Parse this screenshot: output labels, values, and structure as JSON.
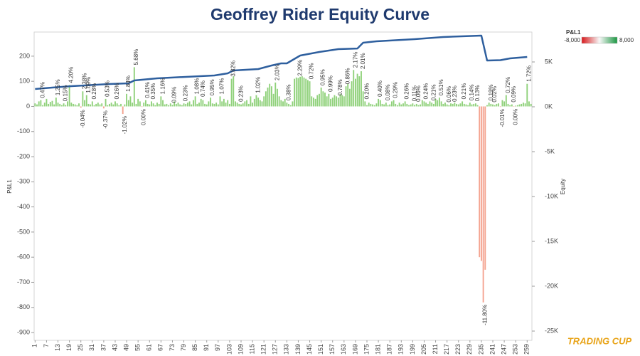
{
  "chart_data": {
    "type": "bar",
    "title": "Geoffrey Rider Equity Curve",
    "y_label": "P&L1",
    "y2_label": "Equity",
    "logo": "TRADING CUP",
    "categories": [
      1,
      null,
      null,
      null,
      null,
      null,
      7,
      null,
      null,
      null,
      null,
      null,
      13,
      null,
      null,
      null,
      null,
      null,
      19,
      null,
      null,
      null,
      null,
      null,
      25,
      null,
      null,
      null,
      null,
      null,
      31,
      null,
      null,
      null,
      null,
      null,
      37,
      null,
      null,
      null,
      null,
      null,
      43,
      null,
      null,
      null,
      null,
      null,
      49,
      null,
      null,
      null,
      null,
      null,
      55,
      null,
      null,
      null,
      null,
      null,
      61,
      null,
      null,
      null,
      null,
      null,
      67,
      null,
      null,
      null,
      null,
      null,
      73,
      null,
      null,
      null,
      null,
      null,
      79,
      null,
      null,
      null,
      null,
      null,
      85,
      null,
      null,
      null,
      null,
      null,
      91,
      null,
      null,
      null,
      null,
      null,
      97,
      null,
      null,
      null,
      null,
      null,
      103,
      null,
      null,
      null,
      null,
      null,
      109,
      null,
      null,
      null,
      null,
      null,
      115,
      null,
      null,
      null,
      null,
      null,
      121,
      null,
      null,
      null,
      null,
      null,
      127,
      null,
      null,
      null,
      null,
      null,
      133,
      null,
      null,
      null,
      null,
      null,
      139,
      null,
      null,
      null,
      null,
      null,
      145,
      null,
      null,
      null,
      null,
      null,
      151,
      null,
      null,
      null,
      null,
      null,
      157,
      null,
      null,
      null,
      null,
      null,
      163,
      null,
      null,
      null,
      null,
      null,
      169,
      null,
      null,
      null,
      null,
      null,
      175,
      null,
      null,
      null,
      null,
      null,
      181,
      null,
      null,
      null,
      null,
      null,
      187,
      null,
      null,
      null,
      null,
      null,
      193,
      null,
      null,
      null,
      null,
      null,
      199,
      null,
      null,
      null,
      null,
      null,
      205,
      null,
      null,
      null,
      null,
      null,
      211,
      null,
      null,
      null,
      null,
      null,
      217,
      null,
      null,
      null,
      null,
      null,
      223,
      null,
      null,
      null,
      null,
      null,
      229,
      null,
      null,
      null,
      null,
      null,
      235,
      null,
      null,
      null,
      null,
      null,
      241,
      null,
      null,
      null,
      null,
      null,
      247,
      null,
      null,
      null,
      null,
      null,
      253,
      null,
      null,
      null,
      null,
      null,
      259,
      null,
      null
    ],
    "series": [
      {
        "name": "P&L1",
        "pos_color": "#8fd17a",
        "neg_color": "#f4a38f",
        "values": [
          12,
          8,
          20,
          25,
          5,
          15,
          30,
          10,
          18,
          22,
          8,
          35,
          15,
          10,
          5,
          12,
          6,
          20,
          85,
          15,
          10,
          8,
          5,
          12,
          -5,
          60,
          25,
          45,
          10,
          8,
          20,
          5,
          10,
          15,
          8,
          12,
          -8,
          30,
          5,
          10,
          15,
          8,
          20,
          12,
          5,
          10,
          -30,
          8,
          50,
          25,
          40,
          15,
          156,
          10,
          30,
          20,
          -2,
          15,
          25,
          10,
          8,
          20,
          12,
          5,
          15,
          10,
          40,
          25,
          8,
          10,
          5,
          12,
          6,
          20,
          10,
          15,
          8,
          5,
          12,
          10,
          15,
          20,
          8,
          25,
          40,
          10,
          15,
          30,
          25,
          10,
          8,
          20,
          35,
          12,
          10,
          15,
          8,
          40,
          20,
          30,
          15,
          25,
          10,
          110,
          120,
          20,
          15,
          10,
          8,
          12,
          20,
          25,
          10,
          40,
          15,
          30,
          45,
          35,
          25,
          20,
          40,
          60,
          75,
          90,
          80,
          50,
          95,
          70,
          40,
          25,
          20,
          30,
          15,
          10,
          5,
          20,
          110,
          115,
          113,
          118,
          120,
          115,
          110,
          105,
          100,
          40,
          35,
          30,
          45,
          50,
          75,
          60,
          55,
          40,
          50,
          30,
          35,
          45,
          40,
          35,
          50,
          45,
          40,
          80,
          90,
          70,
          100,
          145,
          110,
          130,
          120,
          140,
          60,
          20,
          5,
          15,
          10,
          8,
          5,
          12,
          30,
          25,
          10,
          8,
          15,
          5,
          8,
          20,
          25,
          10,
          5,
          15,
          8,
          12,
          20,
          10,
          5,
          8,
          12,
          6,
          10,
          5,
          8,
          25,
          20,
          15,
          10,
          20,
          15,
          10,
          30,
          25,
          35,
          20,
          10,
          15,
          8,
          5,
          12,
          10,
          15,
          10,
          8,
          12,
          20,
          10,
          8,
          5,
          15,
          8,
          10,
          12,
          5,
          -600,
          -615,
          -780,
          -650,
          5,
          15,
          10,
          8,
          5,
          10,
          12,
          -2,
          25,
          20,
          45,
          10,
          5,
          8,
          -1,
          3,
          5,
          8,
          10,
          15,
          12,
          90,
          20,
          10
        ]
      },
      {
        "name": "Equity",
        "axis": "y2",
        "color": "#2e5f9e",
        "x": [
          1,
          10,
          20,
          40,
          50,
          53,
          65,
          80,
          95,
          102,
          105,
          118,
          125,
          130,
          133,
          140,
          150,
          160,
          170,
          173,
          180,
          200,
          215,
          235,
          238,
          245,
          250,
          259
        ],
        "values": [
          1984,
          2143,
          2300,
          2540,
          2620,
          2937,
          3175,
          3333,
          3490,
          3730,
          4048,
          4206,
          4603,
          4840,
          4840,
          5714,
          6111,
          6429,
          6500,
          7143,
          7300,
          7540,
          7778,
          7937,
          5159,
          5200,
          5397,
          5556
        ]
      }
    ],
    "annotations": [
      {
        "x": 4,
        "text": "0.47%"
      },
      {
        "x": 12,
        "text": "1.25%"
      },
      {
        "x": 16,
        "text": "0.15%"
      },
      {
        "x": 19,
        "text": "4.20%"
      },
      {
        "x": 25,
        "text": "-0.04%"
      },
      {
        "x": 26,
        "text": "2.38%"
      },
      {
        "x": 28,
        "text": "1.69%"
      },
      {
        "x": 31,
        "text": "0.28%"
      },
      {
        "x": 37,
        "text": "-0.37%"
      },
      {
        "x": 38,
        "text": "0.53%"
      },
      {
        "x": 43,
        "text": "0.26%"
      },
      {
        "x": 47,
        "text": "-1.02%"
      },
      {
        "x": 49,
        "text": "1.84%"
      },
      {
        "x": 53,
        "text": "5.68%"
      },
      {
        "x": 57,
        "text": "0.00%"
      },
      {
        "x": 59,
        "text": "0.41%"
      },
      {
        "x": 62,
        "text": "0.35%"
      },
      {
        "x": 67,
        "text": "1.16%"
      },
      {
        "x": 73,
        "text": "0.09%"
      },
      {
        "x": 79,
        "text": "0.23%"
      },
      {
        "x": 85,
        "text": "1.08%"
      },
      {
        "x": 88,
        "text": "0.74%"
      },
      {
        "x": 93,
        "text": "0.95%"
      },
      {
        "x": 98,
        "text": "1.07%"
      },
      {
        "x": 104,
        "text": "3.82%"
      },
      {
        "x": 108,
        "text": "0.23%"
      },
      {
        "x": 117,
        "text": "1.02%"
      },
      {
        "x": 127,
        "text": "2.03%"
      },
      {
        "x": 133,
        "text": "0.38%"
      },
      {
        "x": 139,
        "text": "2.29%"
      },
      {
        "x": 145,
        "text": "0.72%"
      },
      {
        "x": 151,
        "text": "0.95%"
      },
      {
        "x": 155,
        "text": "0.99%"
      },
      {
        "x": 160,
        "text": "0.78%"
      },
      {
        "x": 164,
        "text": "0.86%"
      },
      {
        "x": 168,
        "text": "2.17%"
      },
      {
        "x": 172,
        "text": "2.01%"
      },
      {
        "x": 174,
        "text": "0.20%"
      },
      {
        "x": 181,
        "text": "0.40%"
      },
      {
        "x": 185,
        "text": "0.08%"
      },
      {
        "x": 189,
        "text": "0.29%"
      },
      {
        "x": 195,
        "text": "0.26%"
      },
      {
        "x": 199,
        "text": "0.11%"
      },
      {
        "x": 201,
        "text": "0.06%"
      },
      {
        "x": 205,
        "text": "0.24%"
      },
      {
        "x": 209,
        "text": "0.21%"
      },
      {
        "x": 213,
        "text": "0.51%"
      },
      {
        "x": 217,
        "text": "0.06%"
      },
      {
        "x": 220,
        "text": "0.23%"
      },
      {
        "x": 225,
        "text": "0.21%"
      },
      {
        "x": 229,
        "text": "0.14%"
      },
      {
        "x": 232,
        "text": "0.13%"
      },
      {
        "x": 236,
        "text": "-11.80%"
      },
      {
        "x": 239,
        "text": "0.19%"
      },
      {
        "x": 241,
        "text": "0.02%"
      },
      {
        "x": 245,
        "text": "-0.01%"
      },
      {
        "x": 248,
        "text": "0.72%"
      },
      {
        "x": 251,
        "text": "0.09%"
      },
      {
        "x": 252,
        "text": "0.00%"
      },
      {
        "x": 259,
        "text": "1.72%"
      }
    ],
    "ylim": [
      -931,
      296
    ],
    "yticks": [
      -900,
      -800,
      -700,
      -600,
      -500,
      -400,
      -300,
      -200,
      -100,
      0,
      100,
      200
    ],
    "y2lim": [
      -26032,
      8333
    ],
    "y2ticks": [
      {
        "value": -25000,
        "label": "-25K"
      },
      {
        "value": -20000,
        "label": "-20K"
      },
      {
        "value": -15000,
        "label": "-15K"
      },
      {
        "value": -10000,
        "label": "-10K"
      },
      {
        "value": -5000,
        "label": "-5K"
      },
      {
        "value": 0,
        "label": "0K"
      },
      {
        "value": 5000,
        "label": "5K"
      }
    ],
    "grid": false,
    "color_legend": {
      "title": "P&L1",
      "min": {
        "value": -8000,
        "label": "-8,000"
      },
      "max": {
        "value": 8000,
        "label": "8,000"
      },
      "colors": [
        "#d7191c",
        "#f7f7f7",
        "#1a9641"
      ],
      "position": "top-right"
    }
  }
}
